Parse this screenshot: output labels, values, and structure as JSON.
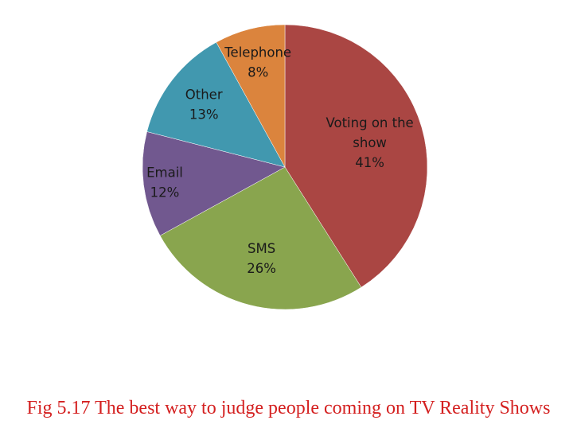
{
  "caption": "Fig 5.17 The best way to judge people coming on TV Reality Shows",
  "chart_data": {
    "type": "pie",
    "title": "",
    "slices": [
      {
        "label": [
          "Voting on the",
          "show"
        ],
        "value": 41,
        "value_label": "41%",
        "color": "#AA4643"
      },
      {
        "label": [
          "SMS"
        ],
        "value": 26,
        "value_label": "26%",
        "color": "#89A54E"
      },
      {
        "label": [
          "Email"
        ],
        "value": 12,
        "value_label": "12%",
        "color": "#71588F"
      },
      {
        "label": [
          "Other"
        ],
        "value": 13,
        "value_label": "13%",
        "color": "#4198AF"
      },
      {
        "label": [
          "Telephone"
        ],
        "value": 8,
        "value_label": "8%",
        "color": "#DB843D"
      }
    ]
  }
}
